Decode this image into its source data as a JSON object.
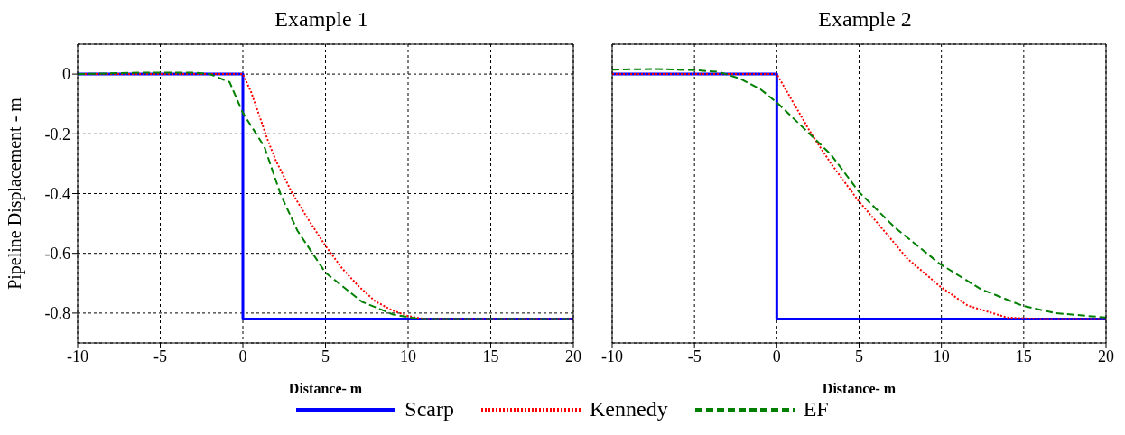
{
  "chart_data": [
    {
      "type": "line",
      "title": "Example 1",
      "xlabel": "Distance- m",
      "ylabel": "Pipeline Displacement - m",
      "xlim": [
        -10,
        20
      ],
      "xticks": [
        -10,
        -5,
        0,
        5,
        10,
        15,
        20
      ],
      "ylim": [
        -0.9,
        0.1
      ],
      "yticks": [
        0,
        -0.2,
        -0.4,
        -0.6,
        -0.8
      ],
      "grid": true,
      "legend": "bottom",
      "marker": "none",
      "series": [
        {
          "name": "Scarp",
          "color": "#0000ff",
          "line_style": "solid",
          "x": [
            -10,
            0,
            0,
            20
          ],
          "values": [
            0,
            0,
            -0.82,
            -0.82
          ]
        },
        {
          "name": "Kennedy",
          "color": "#ff0000",
          "line_style": "dotted",
          "x": [
            -10,
            0,
            0.5,
            1,
            1.5,
            2,
            3,
            4,
            5,
            6,
            7,
            8,
            9,
            10,
            11,
            20
          ],
          "values": [
            0,
            0,
            -0.06,
            -0.14,
            -0.22,
            -0.29,
            -0.4,
            -0.49,
            -0.575,
            -0.65,
            -0.71,
            -0.76,
            -0.79,
            -0.81,
            -0.82,
            -0.82
          ]
        },
        {
          "name": "EF",
          "color": "#008000",
          "line_style": "dashed",
          "x": [
            -10,
            -6,
            -3,
            -2,
            -0.8,
            0,
            1.3,
            2.3,
            3.3,
            5,
            7.2,
            9.1,
            10.7,
            20
          ],
          "values": [
            0,
            0.005,
            0.005,
            0,
            -0.027,
            -0.13,
            -0.243,
            -0.405,
            -0.524,
            -0.665,
            -0.762,
            -0.805,
            -0.82,
            -0.82
          ]
        }
      ]
    },
    {
      "type": "line",
      "title": "Example 2",
      "xlabel": "Distance- m",
      "xlim": [
        -10,
        20
      ],
      "xticks": [
        -10,
        -5,
        0,
        5,
        10,
        15,
        20
      ],
      "ylim": [
        -0.9,
        0.1
      ],
      "yticks": [
        0,
        -0.2,
        -0.4,
        -0.6,
        -0.8
      ],
      "grid": true,
      "tick_labels": "x",
      "marker": "none",
      "series": [
        {
          "color": "#0000ff",
          "line_style": "solid",
          "x": [
            -10,
            0,
            0,
            20
          ],
          "values": [
            0,
            0,
            -0.82,
            -0.82
          ]
        },
        {
          "color": "#ff0000",
          "line_style": "dotted",
          "x": [
            -10,
            0,
            2.1,
            3.3,
            4.9,
            6.6,
            7.9,
            9.9,
            11.6,
            14,
            16.1,
            20
          ],
          "values": [
            0,
            0,
            -0.2,
            -0.3,
            -0.42,
            -0.53,
            -0.616,
            -0.71,
            -0.775,
            -0.815,
            -0.82,
            -0.82
          ]
        },
        {
          "color": "#008000",
          "line_style": "dashed",
          "x": [
            -10,
            -7.4,
            -4.9,
            -3.5,
            -2.2,
            -1,
            0,
            1.9,
            3.3,
            5,
            7.2,
            9.9,
            12.4,
            14.9,
            16.9,
            20
          ],
          "values": [
            0.015,
            0.017,
            0.013,
            0.007,
            -0.016,
            -0.05,
            -0.095,
            -0.195,
            -0.27,
            -0.395,
            -0.515,
            -0.635,
            -0.72,
            -0.775,
            -0.8,
            -0.815
          ]
        }
      ]
    }
  ]
}
